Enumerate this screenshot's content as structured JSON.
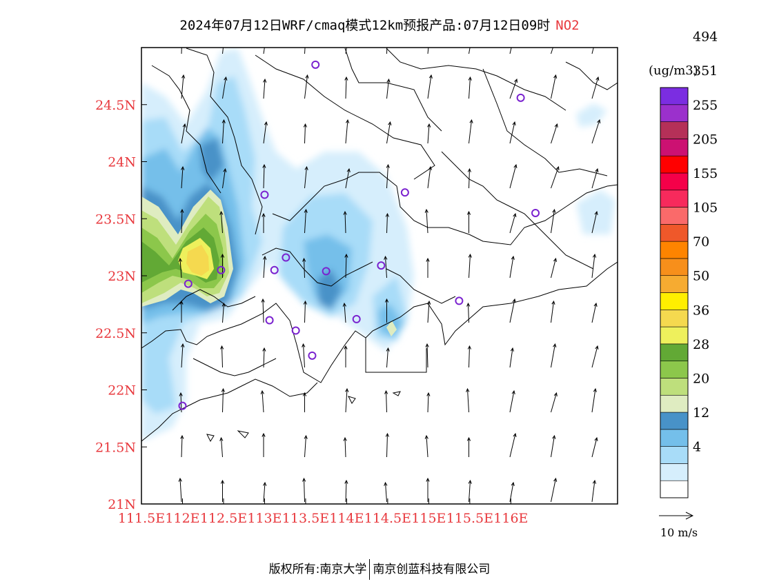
{
  "title": {
    "text": "2024年07月12日WRF/cmaq模式12km预报产品:07月12日09时",
    "pollutant": "NO2"
  },
  "map": {
    "lon_range": [
      111.5,
      117.3
    ],
    "lat_range": [
      21.0,
      25.0
    ],
    "lon_ticks": [
      111.5,
      112,
      112.5,
      113,
      113.5,
      114,
      114.5,
      115,
      115.5,
      116
    ],
    "lon_tick_labels": [
      "111.5E",
      "112E",
      "112.5E",
      "113E",
      "113.5E",
      "114E",
      "114.5E",
      "115E",
      "115.5E",
      "116E"
    ],
    "lat_ticks": [
      21,
      21.5,
      22,
      22.5,
      23,
      23.5,
      24,
      24.5
    ],
    "lat_tick_labels": [
      "21N",
      "21.5N",
      "22N",
      "22.5N",
      "23N",
      "23.5N",
      "24N",
      "24.5N"
    ],
    "tick_color": "#e8383d"
  },
  "colorbar": {
    "unit": "(ug/m3)",
    "levels": [
      "",
      "4",
      "12",
      "20",
      "28",
      "36",
      "50",
      "70",
      "105",
      "155",
      "205",
      "255",
      "351",
      "494"
    ],
    "colors": [
      "#ffffff",
      "#d6eefc",
      "#a8dcf8",
      "#74bfea",
      "#4892c8",
      "#dfecc1",
      "#bedf7c",
      "#8cc74b",
      "#62a935",
      "#eef05c",
      "#f5d94f",
      "#ffef00",
      "#f6ab31",
      "#f78f1b",
      "#fe8400",
      "#ef582a",
      "#fa6a6a",
      "#f72a5c",
      "#f50049",
      "#ff0000",
      "#cc1172",
      "#b53058",
      "#9b30cc",
      "#7b2de1"
    ]
  },
  "wind": {
    "reference_label": "10 m/s",
    "direction": "southerly"
  },
  "stations": [
    {
      "lon": 113.62,
      "lat": 24.85
    },
    {
      "lon": 116.12,
      "lat": 24.56
    },
    {
      "lon": 113.0,
      "lat": 23.71
    },
    {
      "lon": 114.71,
      "lat": 23.73
    },
    {
      "lon": 116.3,
      "lat": 23.55
    },
    {
      "lon": 113.26,
      "lat": 23.16
    },
    {
      "lon": 113.12,
      "lat": 23.05
    },
    {
      "lon": 112.47,
      "lat": 23.05
    },
    {
      "lon": 113.75,
      "lat": 23.04
    },
    {
      "lon": 114.42,
      "lat": 23.09
    },
    {
      "lon": 112.07,
      "lat": 22.93
    },
    {
      "lon": 115.37,
      "lat": 22.78
    },
    {
      "lon": 113.06,
      "lat": 22.61
    },
    {
      "lon": 114.12,
      "lat": 22.62
    },
    {
      "lon": 113.38,
      "lat": 22.52
    },
    {
      "lon": 113.58,
      "lat": 22.3
    },
    {
      "lon": 112.0,
      "lat": 21.86
    }
  ],
  "footer": {
    "copyright_prefix": "版权所有:",
    "org1": "南京大学",
    "org2": "南京创蓝科技有限公司"
  }
}
